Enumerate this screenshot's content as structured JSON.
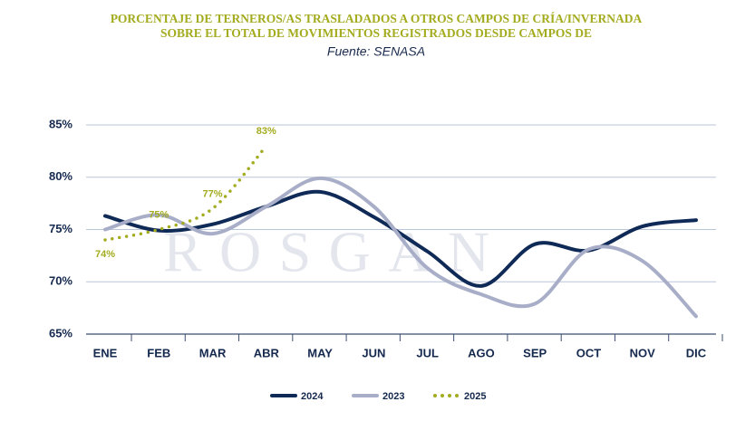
{
  "chart_data": {
    "type": "line",
    "title": [
      "PORCENTAJE DE TERNEROS/AS TRASLADADOS A OTROS CAMPOS DE CRÍA/INVERNADA",
      "SOBRE EL TOTAL DE MOVIMIENTOS REGISTRADOS DESDE CAMPOS DE"
    ],
    "subtitle": "Fuente: SENASA",
    "watermark": "ROSGAN",
    "categories": [
      "ENE",
      "FEB",
      "MAR",
      "ABR",
      "MAY",
      "JUN",
      "JUL",
      "AGO",
      "SEP",
      "OCT",
      "NOV",
      "DIC"
    ],
    "ylim": [
      65,
      85
    ],
    "yticks": [
      {
        "value": 65,
        "label": "65%"
      },
      {
        "value": 70,
        "label": "70%"
      },
      {
        "value": 75,
        "label": "75%"
      },
      {
        "value": 80,
        "label": "80%"
      },
      {
        "value": 85,
        "label": "85%"
      }
    ],
    "grid": true,
    "series": [
      {
        "name": "2024",
        "color": "#0f2a56",
        "style": "solid",
        "values": [
          76.3,
          74.9,
          75.5,
          77.2,
          78.6,
          76.2,
          72.9,
          69.6,
          73.6,
          73.0,
          75.3,
          75.9
        ]
      },
      {
        "name": "2023",
        "color": "#a9aec8",
        "style": "solid",
        "values": [
          75.0,
          76.4,
          74.6,
          77.2,
          79.9,
          77.2,
          71.3,
          68.8,
          67.9,
          73.1,
          72.0,
          66.7
        ]
      },
      {
        "name": "2025",
        "color": "#a3ab1e",
        "style": "dotted",
        "values": [
          74,
          75,
          77,
          83,
          null,
          null,
          null,
          null,
          null,
          null,
          null,
          null
        ],
        "value_labels": [
          "74%",
          "75%",
          "77%",
          "83%",
          null,
          null,
          null,
          null,
          null,
          null,
          null,
          null
        ]
      }
    ]
  }
}
